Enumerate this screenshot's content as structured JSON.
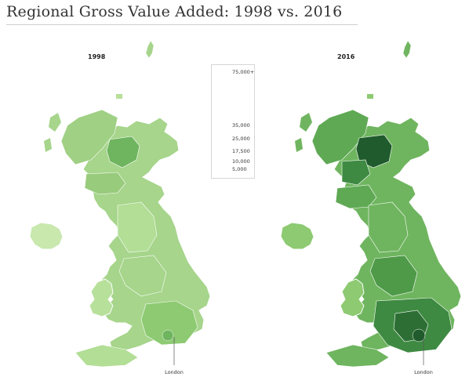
{
  "title": "Regional Gross Value Added: 1998 vs. 2016",
  "maps": [
    {
      "year": "1998",
      "city_label": "London"
    },
    {
      "year": "2016",
      "city_label": "London"
    }
  ],
  "legend": {
    "ticks": [
      "75,000+",
      "35,000",
      "25,000",
      "17,500",
      "10,000",
      "5,000"
    ],
    "colors": [
      "#1f5b2c",
      "#3e8a42",
      "#5fa954",
      "#8dca72",
      "#b7e09a",
      "#d9f0c0"
    ]
  },
  "colors": {
    "land_1998_base": "#a6d58b",
    "land_2016_base": "#6fb55f",
    "border": "#ffffff",
    "title_rule": "#cfcfcf"
  }
}
